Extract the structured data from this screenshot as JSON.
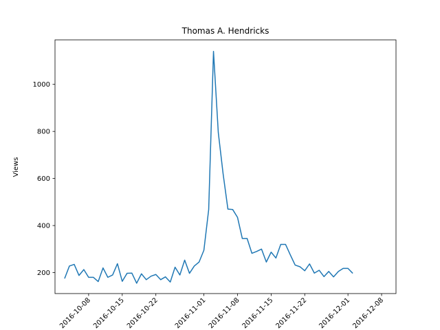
{
  "chart_data": {
    "type": "line",
    "title": "Thomas A. Hendricks",
    "xlabel": "",
    "ylabel": "Views",
    "x_start": "2016-10-03",
    "x_end": "2016-12-08",
    "xlim": [
      "2016-10-01",
      "2016-12-11"
    ],
    "ylim": [
      111,
      1189
    ],
    "grid": false,
    "line_color": "#1f77b4",
    "x_ticks": [
      "2016-10-08",
      "2016-10-15",
      "2016-10-22",
      "2016-11-01",
      "2016-11-08",
      "2016-11-15",
      "2016-11-22",
      "2016-12-01",
      "2016-12-08"
    ],
    "x_tick_labels": [
      "2016-10-08",
      "2016-10-15",
      "2016-10-22",
      "2016-11-01",
      "2016-11-08",
      "2016-11-15",
      "2016-11-22",
      "2016-12-01",
      "2016-12-08"
    ],
    "y_ticks": [
      200,
      400,
      600,
      800,
      1000
    ],
    "y_tick_labels": [
      "200",
      "400",
      "600",
      "800",
      "1000"
    ],
    "values": [
      175,
      228,
      235,
      188,
      213,
      180,
      180,
      162,
      220,
      180,
      190,
      238,
      163,
      197,
      198,
      155,
      195,
      170,
      185,
      192,
      170,
      182,
      160,
      223,
      190,
      253,
      197,
      228,
      245,
      295,
      468,
      1140,
      795,
      620,
      470,
      468,
      435,
      345,
      345,
      282,
      290,
      300,
      245,
      287,
      262,
      320,
      320,
      275,
      232,
      225,
      208,
      237,
      198,
      210,
      183,
      205,
      182,
      205,
      218,
      218,
      197
    ]
  }
}
